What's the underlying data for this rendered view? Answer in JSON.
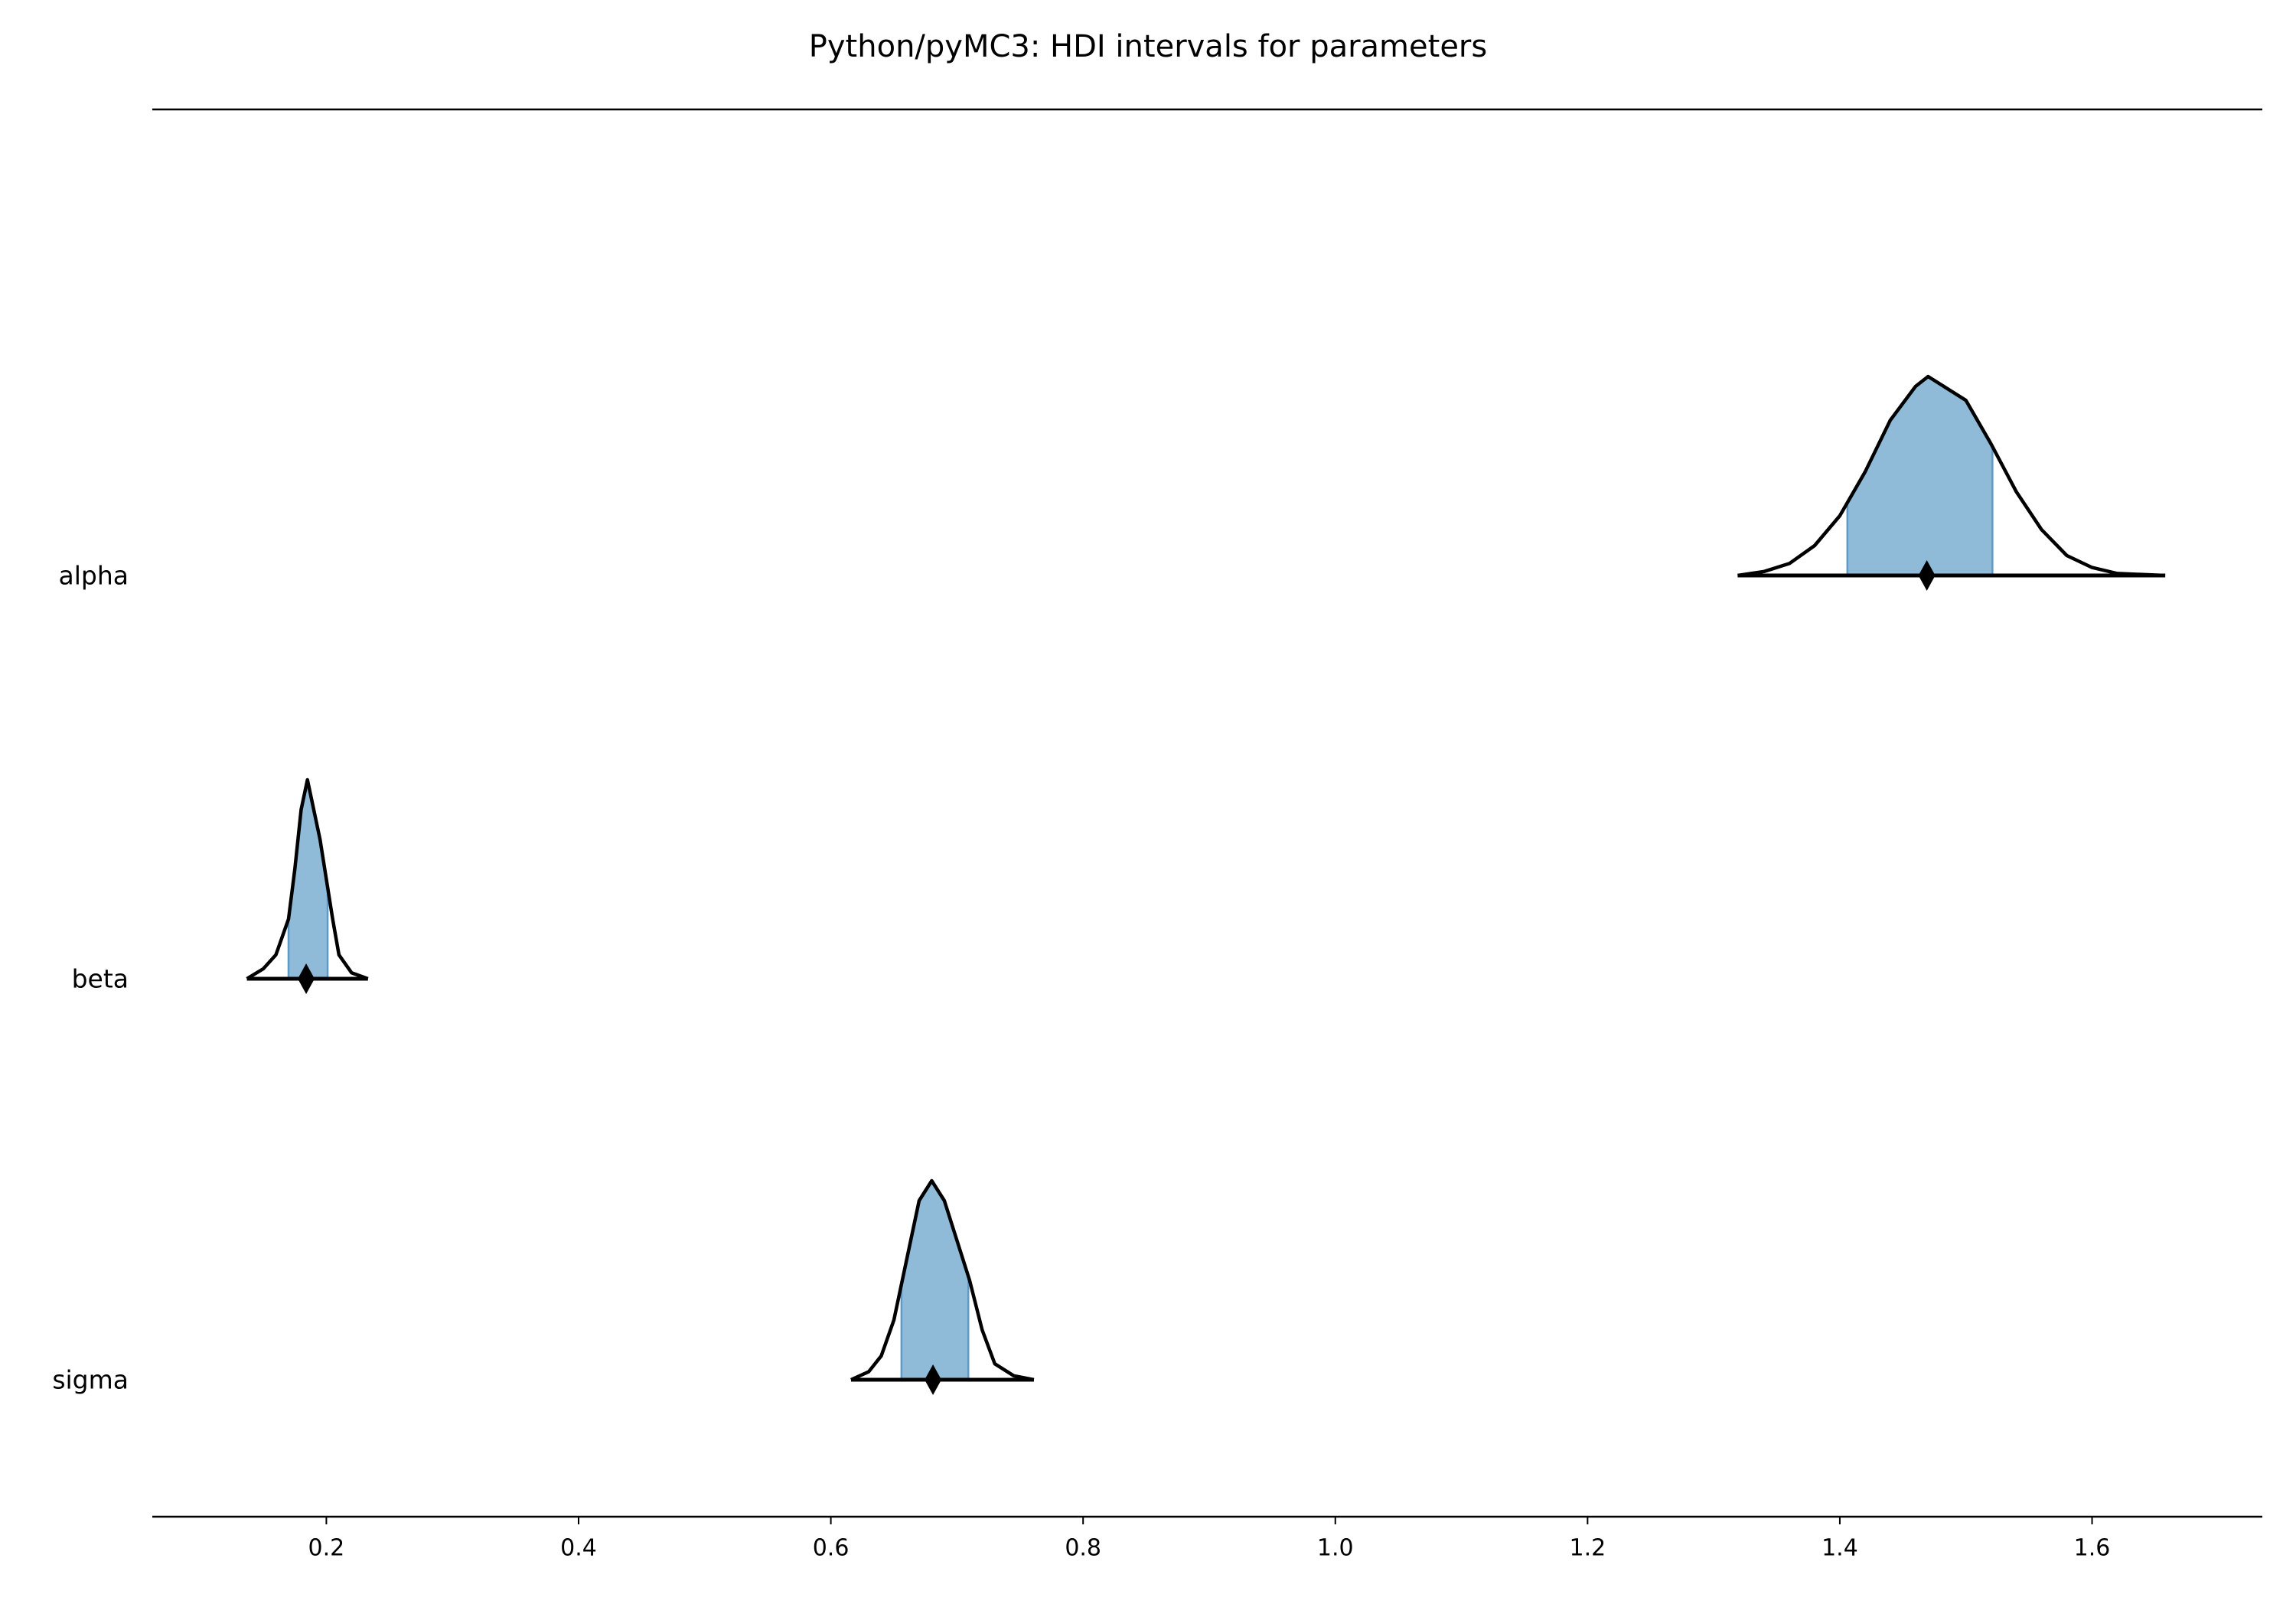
{
  "chart_data": {
    "type": "ridgeplot",
    "title": "Python/pyMC3: HDI intervals for parameters",
    "xlim": [
      0.062,
      1.735
    ],
    "xticks": [
      {
        "value": 0.2,
        "label": "0.2"
      },
      {
        "value": 0.4,
        "label": "0.4"
      },
      {
        "value": 0.6,
        "label": "0.6"
      },
      {
        "value": 0.8,
        "label": "0.8"
      },
      {
        "value": 1.0,
        "label": "1.0"
      },
      {
        "value": 1.2,
        "label": "1.2"
      },
      {
        "value": 1.4,
        "label": "1.4"
      },
      {
        "value": 1.6,
        "label": "1.6"
      }
    ],
    "series": [
      {
        "name": "alpha",
        "color": "#8fbbd9",
        "x": [
          1.319,
          1.34,
          1.36,
          1.38,
          1.4,
          1.42,
          1.44,
          1.46,
          1.47,
          1.48,
          1.5,
          1.52,
          1.54,
          1.56,
          1.58,
          1.6,
          1.62,
          1.658
        ],
        "density": [
          0,
          0.02,
          0.06,
          0.15,
          0.3,
          0.52,
          0.78,
          0.95,
          1.0,
          0.96,
          0.88,
          0.66,
          0.42,
          0.23,
          0.1,
          0.04,
          0.01,
          0
        ],
        "hdi": [
          1.406,
          1.521
        ],
        "mean": 1.469,
        "range": [
          1.319,
          1.658
        ]
      },
      {
        "name": "beta",
        "color": "#8fbbd9",
        "x": [
          0.137,
          0.15,
          0.16,
          0.17,
          0.175,
          0.18,
          0.185,
          0.19,
          0.195,
          0.2,
          0.205,
          0.21,
          0.22,
          0.233
        ],
        "density": [
          0,
          0.05,
          0.12,
          0.3,
          0.55,
          0.85,
          1.0,
          0.85,
          0.7,
          0.5,
          0.3,
          0.12,
          0.03,
          0
        ],
        "hdi": [
          0.17,
          0.201
        ],
        "mean": 0.184,
        "range": [
          0.137,
          0.233
        ]
      },
      {
        "name": "sigma",
        "color": "#8fbbd9",
        "x": [
          0.616,
          0.63,
          0.64,
          0.65,
          0.66,
          0.67,
          0.68,
          0.69,
          0.7,
          0.71,
          0.72,
          0.73,
          0.745,
          0.761
        ],
        "density": [
          0,
          0.04,
          0.12,
          0.3,
          0.6,
          0.9,
          1.0,
          0.9,
          0.7,
          0.5,
          0.25,
          0.08,
          0.02,
          0
        ],
        "hdi": [
          0.656,
          0.709
        ],
        "mean": 0.681,
        "range": [
          0.616,
          0.761
        ]
      }
    ]
  }
}
